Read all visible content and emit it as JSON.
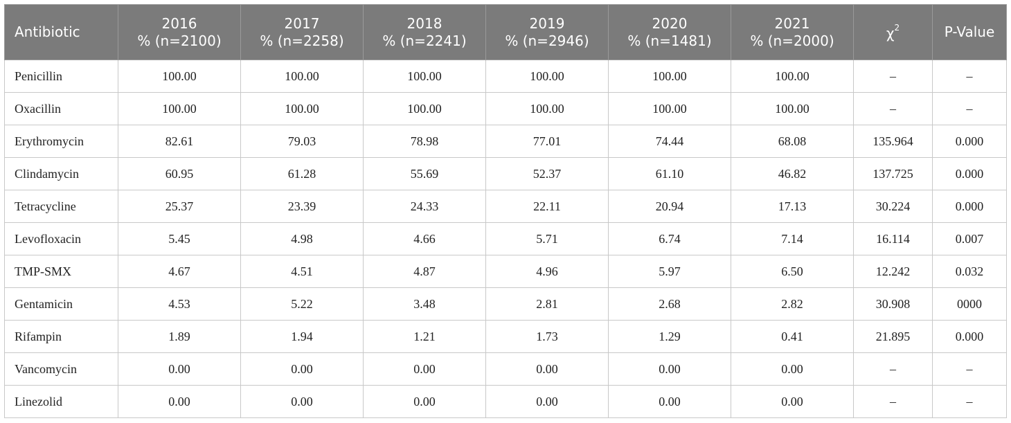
{
  "table": {
    "headers": [
      {
        "line1": "Antibiotic",
        "line2": ""
      },
      {
        "line1": "2016",
        "line2": "% (n=2100)"
      },
      {
        "line1": "2017",
        "line2": "% (n=2258)"
      },
      {
        "line1": "2018",
        "line2": "% (n=2241)"
      },
      {
        "line1": "2019",
        "line2": "% (n=2946)"
      },
      {
        "line1": "2020",
        "line2": "% (n=1481)"
      },
      {
        "line1": "2021",
        "line2": "% (n=2000)"
      },
      {
        "line1": "χ",
        "sup": "2"
      },
      {
        "line1": "P-Value",
        "line2": ""
      }
    ],
    "rows": [
      [
        "Penicillin",
        "100.00",
        "100.00",
        "100.00",
        "100.00",
        "100.00",
        "100.00",
        "–",
        "–"
      ],
      [
        "Oxacillin",
        "100.00",
        "100.00",
        "100.00",
        "100.00",
        "100.00",
        "100.00",
        "–",
        "–"
      ],
      [
        "Erythromycin",
        "82.61",
        "79.03",
        "78.98",
        "77.01",
        "74.44",
        "68.08",
        "135.964",
        "0.000"
      ],
      [
        "Clindamycin",
        "60.95",
        "61.28",
        "55.69",
        "52.37",
        "61.10",
        "46.82",
        "137.725",
        "0.000"
      ],
      [
        "Tetracycline",
        "25.37",
        "23.39",
        "24.33",
        "22.11",
        "20.94",
        "17.13",
        "30.224",
        "0.000"
      ],
      [
        "Levofloxacin",
        "5.45",
        "4.98",
        "4.66",
        "5.71",
        "6.74",
        "7.14",
        "16.114",
        "0.007"
      ],
      [
        "TMP-SMX",
        "4.67",
        "4.51",
        "4.87",
        "4.96",
        "5.97",
        "6.50",
        "12.242",
        "0.032"
      ],
      [
        "Gentamicin",
        "4.53",
        "5.22",
        "3.48",
        "2.81",
        "2.68",
        "2.82",
        "30.908",
        "0000"
      ],
      [
        "Rifampin",
        "1.89",
        "1.94",
        "1.21",
        "1.73",
        "1.29",
        "0.41",
        "21.895",
        "0.000"
      ],
      [
        "Vancomycin",
        "0.00",
        "0.00",
        "0.00",
        "0.00",
        "0.00",
        "0.00",
        "–",
        "–"
      ],
      [
        "Linezolid",
        "0.00",
        "0.00",
        "0.00",
        "0.00",
        "0.00",
        "0.00",
        "–",
        "–"
      ]
    ]
  }
}
